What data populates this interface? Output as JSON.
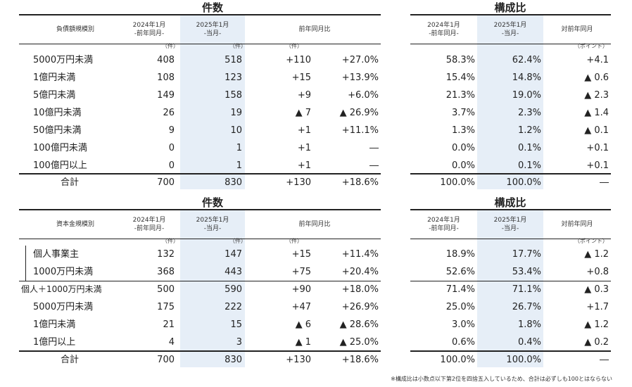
{
  "top": {
    "count_title": "件数",
    "ratio_title": "構成比",
    "header": {
      "category": "負債額規模別",
      "prev_line1": "2024年1月",
      "prev_line2": "-前年同月-",
      "curr_line1": "2025年1月",
      "curr_line2": "-当月-",
      "yoy": "前年同月比",
      "r_prev_line1": "2024年1月",
      "r_prev_line2": "-前年同月-",
      "r_curr_line1": "2025年1月",
      "r_curr_line2": "-当月-",
      "r_diff": "対前年同月"
    },
    "units": {
      "prev": "（件）",
      "curr": "（件）",
      "diff": "（件）",
      "point": "（ポイント）"
    },
    "rows": [
      {
        "label": "5000万円未満",
        "prev": "408",
        "curr": "518",
        "diff": "+110",
        "pct": "+27.0%",
        "r_prev": "58.3%",
        "r_curr": "62.4%",
        "r_diff": "+4.1"
      },
      {
        "label": "1億円未満",
        "prev": "108",
        "curr": "123",
        "diff": "+15",
        "pct": "+13.9%",
        "r_prev": "15.4%",
        "r_curr": "14.8%",
        "r_diff": "▲ 0.6"
      },
      {
        "label": "5億円未満",
        "prev": "149",
        "curr": "158",
        "diff": "+9",
        "pct": "+6.0%",
        "r_prev": "21.3%",
        "r_curr": "19.0%",
        "r_diff": "▲ 2.3"
      },
      {
        "label": "10億円未満",
        "prev": "26",
        "curr": "19",
        "diff": "▲ 7",
        "pct": "▲ 26.9%",
        "r_prev": "3.7%",
        "r_curr": "2.3%",
        "r_diff": "▲ 1.4"
      },
      {
        "label": "50億円未満",
        "prev": "9",
        "curr": "10",
        "diff": "+1",
        "pct": "+11.1%",
        "r_prev": "1.3%",
        "r_curr": "1.2%",
        "r_diff": "▲ 0.1"
      },
      {
        "label": "100億円未満",
        "prev": "0",
        "curr": "1",
        "diff": "+1",
        "pct": "―",
        "r_prev": "0.0%",
        "r_curr": "0.1%",
        "r_diff": "+0.1"
      },
      {
        "label": "100億円以上",
        "prev": "0",
        "curr": "1",
        "diff": "+1",
        "pct": "―",
        "r_prev": "0.0%",
        "r_curr": "0.1%",
        "r_diff": "+0.1"
      }
    ],
    "total": {
      "label": "合計",
      "prev": "700",
      "curr": "830",
      "diff": "+130",
      "pct": "+18.6%",
      "r_prev": "100.0%",
      "r_curr": "100.0%",
      "r_diff": "―"
    }
  },
  "bottom": {
    "count_title": "件数",
    "ratio_title": "構成比",
    "header": {
      "category": "資本金規模別",
      "prev_line1": "2024年1月",
      "prev_line2": "-前年同月-",
      "curr_line1": "2025年1月",
      "curr_line2": "-当月-",
      "yoy": "前年同月比",
      "r_prev_line1": "2024年1月",
      "r_prev_line2": "-前年同月-",
      "r_curr_line1": "2025年1月",
      "r_curr_line2": "-当月-",
      "r_diff": "対前年同月"
    },
    "units": {
      "prev": "（件）",
      "curr": "（件）",
      "diff": "（件）",
      "point": "（ポイント）"
    },
    "rows": [
      {
        "label": "個人事業主",
        "prev": "132",
        "curr": "147",
        "diff": "+15",
        "pct": "+11.4%",
        "r_prev": "18.9%",
        "r_curr": "17.7%",
        "r_diff": "▲ 1.2"
      },
      {
        "label": "1000万円未満",
        "prev": "368",
        "curr": "443",
        "diff": "+75",
        "pct": "+20.4%",
        "r_prev": "52.6%",
        "r_curr": "53.4%",
        "r_diff": "+0.8"
      },
      {
        "label": "個人＋1000万円未満",
        "prev": "500",
        "curr": "590",
        "diff": "+90",
        "pct": "+18.0%",
        "r_prev": "71.4%",
        "r_curr": "71.1%",
        "r_diff": "▲ 0.3"
      },
      {
        "label": "5000万円未満",
        "prev": "175",
        "curr": "222",
        "diff": "+47",
        "pct": "+26.9%",
        "r_prev": "25.0%",
        "r_curr": "26.7%",
        "r_diff": "+1.7"
      },
      {
        "label": "1億円未満",
        "prev": "21",
        "curr": "15",
        "diff": "▲ 6",
        "pct": "▲ 28.6%",
        "r_prev": "3.0%",
        "r_curr": "1.8%",
        "r_diff": "▲ 1.2"
      },
      {
        "label": "1億円以上",
        "prev": "4",
        "curr": "3",
        "diff": "▲ 1",
        "pct": "▲ 25.0%",
        "r_prev": "0.6%",
        "r_curr": "0.4%",
        "r_diff": "▲ 0.2"
      }
    ],
    "total": {
      "label": "合計",
      "prev": "700",
      "curr": "830",
      "diff": "+130",
      "pct": "+18.6%",
      "r_prev": "100.0%",
      "r_curr": "100.0%",
      "r_diff": "―"
    }
  },
  "footnote": "※構成比は小数点以下第2位を四捨五入しているため、合計は必ずしも100とはならない",
  "colors": {
    "highlight": "#e6eef7",
    "rule": "#222222"
  }
}
